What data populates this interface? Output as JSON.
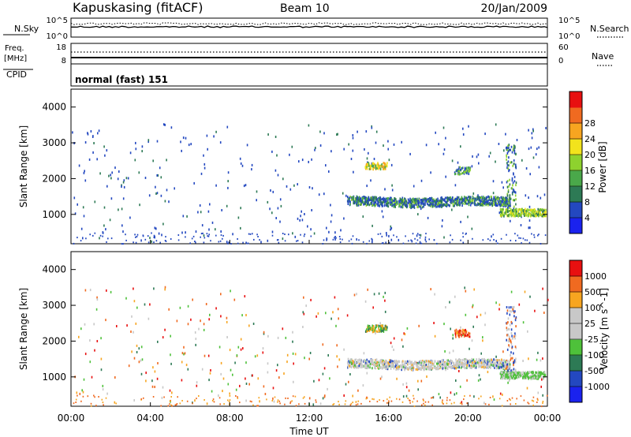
{
  "header": {
    "title": "Kapuskasing (fitACF)",
    "beam": "Beam 10",
    "date": "20/Jan/2009"
  },
  "nsky_panel": {
    "left_label": "N.Sky",
    "ticks_left": [
      "10^5",
      "10^0"
    ],
    "ticks_right": [
      "10^5",
      "10^0"
    ],
    "right_label": "N.Search"
  },
  "freq_panel": {
    "left_label_1": "Freq.",
    "left_label_2": "[MHz]",
    "ticks_left": [
      "18",
      "8"
    ],
    "ticks_right": [
      "60",
      "0"
    ],
    "right_label": "Nave"
  },
  "cpid": {
    "label": "CPID",
    "value": "normal (fast) 151"
  },
  "xaxis": {
    "ticks": [
      "00:00",
      "04:00",
      "08:00",
      "12:00",
      "16:00",
      "20:00",
      "00:00"
    ],
    "label": "Time UT"
  },
  "chart_data": [
    {
      "type": "heatmap",
      "name": "power-panel",
      "ylabel": "Slant Range [km]",
      "yticks": [
        "1000",
        "2000",
        "3000",
        "4000"
      ],
      "ylim": [
        180,
        4500
      ],
      "xlim": [
        0,
        24
      ],
      "colorbar": {
        "label": "Power [dB]",
        "ticks": [
          "4",
          "8",
          "12",
          "16",
          "20",
          "24",
          "28"
        ],
        "colors": [
          "#1a22ee",
          "#2348c0",
          "#2d7a55",
          "#4aa84a",
          "#8ed22e",
          "#f2e31c",
          "#f7a520",
          "#f06a20",
          "#e81010"
        ]
      },
      "scatter_regions": [
        {
          "t": [
            0,
            24
          ],
          "r": [
            200,
            3600
          ],
          "level": "sparse-blue"
        },
        {
          "t": [
            13.9,
            22.0
          ],
          "r": [
            1300,
            1600
          ],
          "level": "band"
        },
        {
          "t": [
            21.6,
            24.0
          ],
          "r": [
            980,
            1200
          ],
          "level": "band-strong"
        },
        {
          "t": [
            14.8,
            15.8
          ],
          "r": [
            2300,
            2500
          ],
          "level": "patch"
        },
        {
          "t": [
            19.4,
            20.0
          ],
          "r": [
            2150,
            2350
          ],
          "level": "patch"
        }
      ]
    },
    {
      "type": "heatmap",
      "name": "velocity-panel",
      "ylabel": "Slant Range [km]",
      "yticks": [
        "1000",
        "2000",
        "3000",
        "4000"
      ],
      "ylim": [
        180,
        4500
      ],
      "xlim": [
        0,
        24
      ],
      "colorbar": {
        "label": "Velocity [m s^-1]",
        "ticks": [
          "1000",
          "500",
          "100",
          "25",
          "-25",
          "-100",
          "-500",
          "-1000"
        ],
        "colors": [
          "#1a22ee",
          "#2348c0",
          "#2d7a55",
          "#4ec13a",
          "#c8c8c8",
          "#c8c8c8",
          "#f7a520",
          "#f06a20",
          "#e81010"
        ]
      }
    }
  ],
  "colors": {
    "axis": "#000000",
    "trace": "#000000"
  }
}
